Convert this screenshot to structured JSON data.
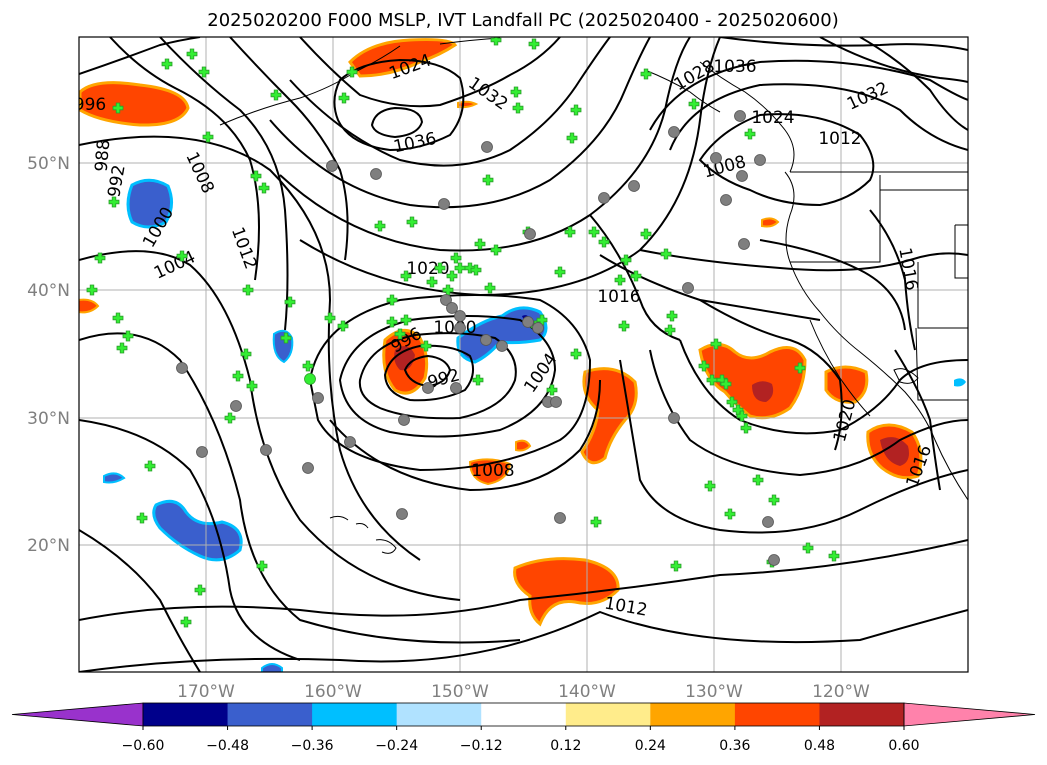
{
  "title": "2025020200 F000 MSLP, IVT Landfall PC (2025020400 - 2025020600)",
  "lon_ticks": [
    "170°W",
    "160°W",
    "150°W",
    "140°W",
    "130°W",
    "120°W"
  ],
  "lat_ticks": [
    "20°N",
    "30°N",
    "40°N",
    "50°N"
  ],
  "isobar_labels": [
    "1036",
    "1032",
    "1028",
    "1024",
    "1020",
    "1016",
    "1012",
    "1008",
    "1004",
    "1000",
    "996",
    "992",
    "988",
    "1036",
    "1032",
    "1024",
    "1016",
    "1012",
    "1020",
    "1016",
    "1008",
    "1012",
    "1004",
    "1000",
    "996",
    "992",
    "1008",
    "1012",
    "1016"
  ],
  "colorbar": {
    "ticks": [
      "−0.60",
      "−0.48",
      "−0.36",
      "−0.24",
      "−0.12",
      "0.12",
      "0.24",
      "0.36",
      "0.48",
      "0.60"
    ],
    "colors": [
      "#9932cc",
      "#00008b",
      "#3a5fcd",
      "#00bfff",
      "#b0e2ff",
      "#ffffff",
      "#ffec8b",
      "#ffa500",
      "#ff4500",
      "#b22222",
      "#ff82ab"
    ]
  },
  "colors": {
    "grid": "#b0b0b0",
    "marker_plus": "#33ee33",
    "marker_circle": "#7f7f7f"
  }
}
